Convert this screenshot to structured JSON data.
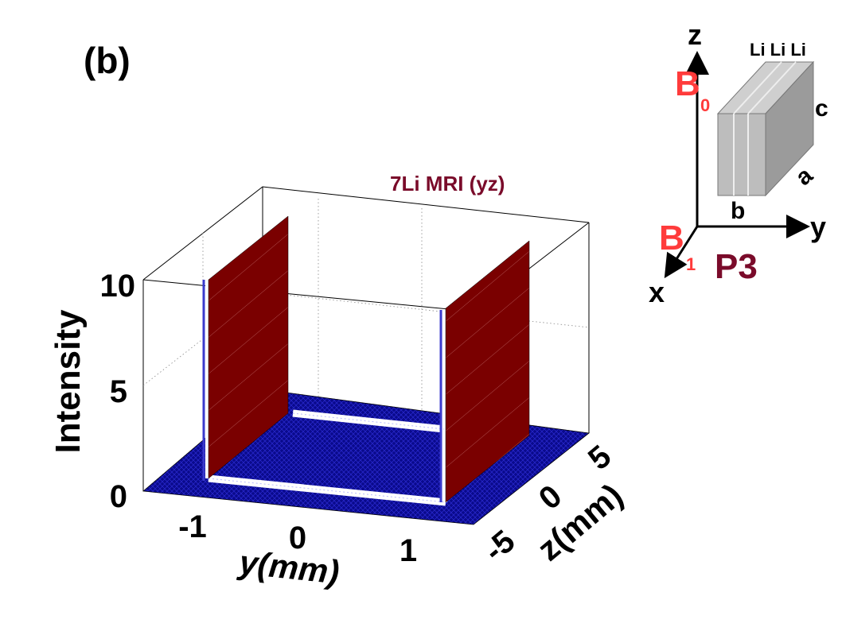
{
  "panel_label": "(b)",
  "chart_data": {
    "type": "surface3d",
    "title": "7Li MRI (yz)",
    "xlabel": "y(mm)",
    "ylabel": "z(mm)",
    "zlabel": "Intensity",
    "x_ticks": [
      "-1",
      "0",
      "1"
    ],
    "y_ticks": [
      "-5",
      "0",
      "5"
    ],
    "z_ticks": [
      "0",
      "5",
      "10"
    ],
    "zlim": [
      0,
      10
    ],
    "grid": true,
    "walls": [
      {
        "y_mm": -1.0,
        "intensity": 10
      },
      {
        "y_mm": 1.15,
        "intensity": 10
      }
    ],
    "colors": {
      "wall": "#7a0000",
      "floor": "#0a0a8c",
      "title": "#7a0b2a"
    }
  },
  "inset": {
    "axis_z": "z",
    "axis_y": "y",
    "axis_x": "x",
    "b0": "B",
    "b0_sub": "0",
    "b1": "B",
    "b1_sub": "1",
    "layers": "Li Li Li",
    "edge_a": "a",
    "edge_b": "b",
    "edge_c": "c",
    "sample": "P3",
    "colors": {
      "field": "#ff3b3b",
      "sample": "#7a0b2a"
    }
  }
}
